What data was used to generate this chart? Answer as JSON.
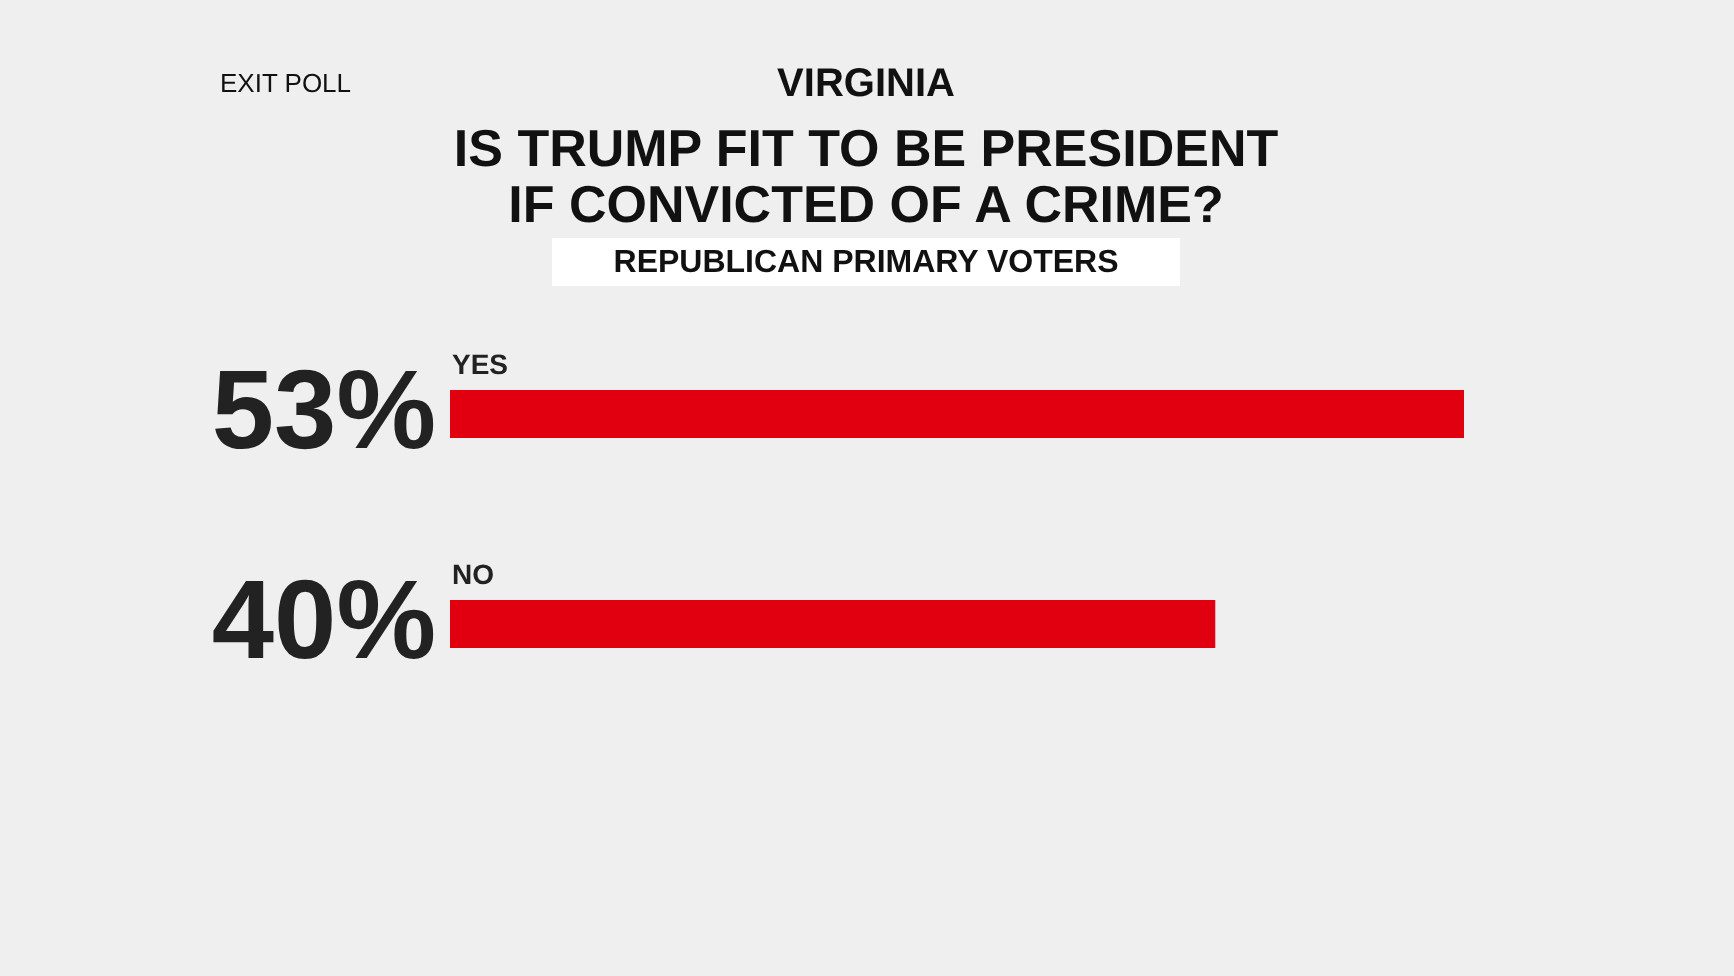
{
  "chart_data": {
    "type": "bar",
    "orientation": "horizontal",
    "title": "IS TRUMP FIT TO BE PRESIDENT\nIF CONVICTED OF A CRIME?",
    "subtitle": "REPUBLICAN PRIMARY VOTERS",
    "annotations": [
      "EXIT POLL",
      "VIRGINIA"
    ],
    "categories": [
      "YES",
      "NO"
    ],
    "values": [
      53,
      40
    ],
    "value_labels": [
      "53%",
      "40%"
    ],
    "color": "#e1000f",
    "grid": false
  }
}
